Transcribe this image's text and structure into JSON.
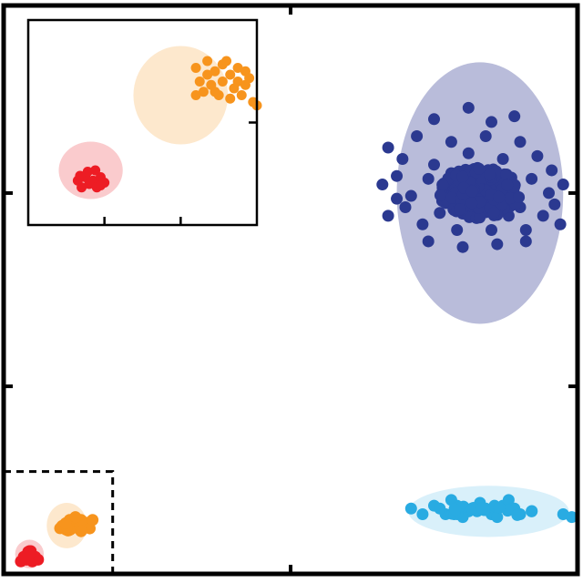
{
  "chart_data": [
    {
      "type": "scatter",
      "panel": "main",
      "title": "",
      "xlabel": "",
      "ylabel": "",
      "xlim": [
        0,
        10
      ],
      "ylim": [
        0,
        10
      ],
      "tick_labels_shown": false,
      "zoom_region": {
        "x": [
          0,
          1.9
        ],
        "y": [
          0,
          1.8
        ],
        "style": "dashed"
      },
      "series": [
        {
          "color": "#2b3990",
          "ellipse": {
            "cx": 8.3,
            "cy": 6.7,
            "rx": 1.45,
            "ry": 2.3,
            "fill": "#8b90c2"
          },
          "spread": {
            "sx": 1.4,
            "sy": 0.5
          },
          "points": [
            [
              6.7,
              7.5
            ],
            [
              6.95,
              7.3
            ],
            [
              7.2,
              7.7
            ],
            [
              7.5,
              7.2
            ],
            [
              7.8,
              7.6
            ],
            [
              8.1,
              7.4
            ],
            [
              8.4,
              7.7
            ],
            [
              8.7,
              7.3
            ],
            [
              9.0,
              7.6
            ],
            [
              9.3,
              7.35
            ],
            [
              9.55,
              7.1
            ],
            [
              6.6,
              6.85
            ],
            [
              6.85,
              7.0
            ],
            [
              7.1,
              6.65
            ],
            [
              7.4,
              6.95
            ],
            [
              7.7,
              6.7
            ],
            [
              8.0,
              6.95
            ],
            [
              8.3,
              6.6
            ],
            [
              8.6,
              6.9
            ],
            [
              8.9,
              6.65
            ],
            [
              9.2,
              6.95
            ],
            [
              9.5,
              6.7
            ],
            [
              9.75,
              6.85
            ],
            [
              6.7,
              6.3
            ],
            [
              7.0,
              6.45
            ],
            [
              7.3,
              6.15
            ],
            [
              7.6,
              6.35
            ],
            [
              7.9,
              6.05
            ],
            [
              8.2,
              6.3
            ],
            [
              8.5,
              6.05
            ],
            [
              8.8,
              6.3
            ],
            [
              9.1,
              6.05
            ],
            [
              9.4,
              6.3
            ],
            [
              9.7,
              6.15
            ],
            [
              7.5,
              8.0
            ],
            [
              8.1,
              8.2
            ],
            [
              8.5,
              7.95
            ],
            [
              8.9,
              8.05
            ],
            [
              7.4,
              5.85
            ],
            [
              8.0,
              5.75
            ],
            [
              8.6,
              5.8
            ],
            [
              9.1,
              5.85
            ],
            [
              7.8,
              7.05
            ],
            [
              8.25,
              7.1
            ],
            [
              8.7,
              7.0
            ],
            [
              8.45,
              6.45
            ],
            [
              7.95,
              6.5
            ],
            [
              9.0,
              6.45
            ],
            [
              6.85,
              6.6
            ],
            [
              9.6,
              6.5
            ]
          ]
        },
        {
          "color": "#29abe2",
          "ellipse": {
            "cx": 8.45,
            "cy": 1.1,
            "rx": 1.4,
            "ry": 0.45,
            "fill": "#bfe6f7"
          },
          "spread": {
            "sx": 1.6,
            "sy": 0.12
          },
          "points": [
            [
              7.1,
              1.15
            ],
            [
              7.3,
              1.05
            ],
            [
              7.5,
              1.2
            ],
            [
              7.7,
              1.05
            ],
            [
              7.9,
              1.2
            ],
            [
              8.1,
              1.1
            ],
            [
              8.3,
              1.25
            ],
            [
              8.5,
              1.05
            ],
            [
              8.7,
              1.2
            ],
            [
              8.9,
              1.15
            ],
            [
              9.2,
              1.1
            ],
            [
              9.75,
              1.05
            ],
            [
              9.9,
              1.0
            ],
            [
              7.6,
              1.15
            ],
            [
              8.0,
              1.0
            ],
            [
              8.4,
              1.15
            ],
            [
              8.8,
              1.3
            ],
            [
              7.8,
              1.3
            ],
            [
              8.6,
              1.0
            ],
            [
              9.0,
              1.05
            ]
          ]
        },
        {
          "color": "#f7941d",
          "ellipse": {
            "cx": 1.1,
            "cy": 0.85,
            "rx": 0.35,
            "ry": 0.4,
            "fill": "#fbd9ac"
          },
          "spread": {
            "sx": 0.3,
            "sy": 0.1
          },
          "points": [
            [
              1.15,
              0.95
            ],
            [
              1.25,
              0.9
            ],
            [
              1.35,
              0.95
            ],
            [
              1.45,
              0.9
            ],
            [
              1.2,
              0.85
            ],
            [
              1.3,
              0.8
            ],
            [
              1.4,
              0.85
            ],
            [
              1.5,
              0.8
            ],
            [
              1.55,
              0.95
            ],
            [
              1.1,
              0.9
            ],
            [
              1.25,
              1.0
            ],
            [
              1.35,
              0.75
            ]
          ]
        },
        {
          "color": "#ed1c24",
          "ellipse": {
            "cx": 0.45,
            "cy": 0.35,
            "rx": 0.25,
            "ry": 0.25,
            "fill": "#f7a8ab"
          },
          "spread": {
            "sx": 0.15,
            "sy": 0.06
          },
          "points": [
            [
              0.35,
              0.3
            ],
            [
              0.45,
              0.35
            ],
            [
              0.55,
              0.3
            ],
            [
              0.4,
              0.25
            ],
            [
              0.5,
              0.22
            ],
            [
              0.3,
              0.22
            ],
            [
              0.6,
              0.25
            ],
            [
              0.45,
              0.4
            ]
          ]
        }
      ]
    },
    {
      "type": "scatter",
      "panel": "inset",
      "title": "",
      "xlabel": "",
      "ylabel": "",
      "xlim": [
        0,
        3
      ],
      "ylim": [
        0,
        3
      ],
      "tick_labels_shown": false,
      "series": [
        {
          "color": "#f7941d",
          "ellipse": {
            "cx": 2.0,
            "cy": 1.9,
            "rx": 0.62,
            "ry": 0.72,
            "fill": "#fbd9ac"
          },
          "points": [
            [
              2.2,
              2.3
            ],
            [
              2.35,
              2.4
            ],
            [
              2.45,
              2.25
            ],
            [
              2.55,
              2.35
            ],
            [
              2.65,
              2.2
            ],
            [
              2.75,
              2.3
            ],
            [
              2.85,
              2.25
            ],
            [
              2.25,
              2.1
            ],
            [
              2.4,
              2.05
            ],
            [
              2.55,
              2.1
            ],
            [
              2.7,
              2.0
            ],
            [
              2.85,
              2.05
            ],
            [
              2.3,
              1.95
            ],
            [
              2.5,
              1.9
            ],
            [
              2.65,
              1.85
            ],
            [
              2.8,
              1.9
            ],
            [
              2.95,
              1.8
            ],
            [
              2.35,
              2.2
            ],
            [
              2.6,
              2.4
            ],
            [
              2.75,
              2.1
            ],
            [
              2.45,
              1.95
            ],
            [
              2.9,
              2.15
            ],
            [
              2.2,
              1.9
            ],
            [
              3.0,
              1.75
            ]
          ]
        },
        {
          "color": "#ed1c24",
          "ellipse": {
            "cx": 0.82,
            "cy": 0.8,
            "rx": 0.42,
            "ry": 0.42,
            "fill": "#f7a8ab"
          },
          "points": [
            [
              0.65,
              0.65
            ],
            [
              0.75,
              0.7
            ],
            [
              0.85,
              0.65
            ],
            [
              0.95,
              0.7
            ],
            [
              0.7,
              0.55
            ],
            [
              0.8,
              0.6
            ],
            [
              0.9,
              0.55
            ],
            [
              1.0,
              0.62
            ],
            [
              0.78,
              0.78
            ],
            [
              0.88,
              0.8
            ],
            [
              0.68,
              0.72
            ],
            [
              0.95,
              0.58
            ]
          ]
        }
      ]
    }
  ]
}
